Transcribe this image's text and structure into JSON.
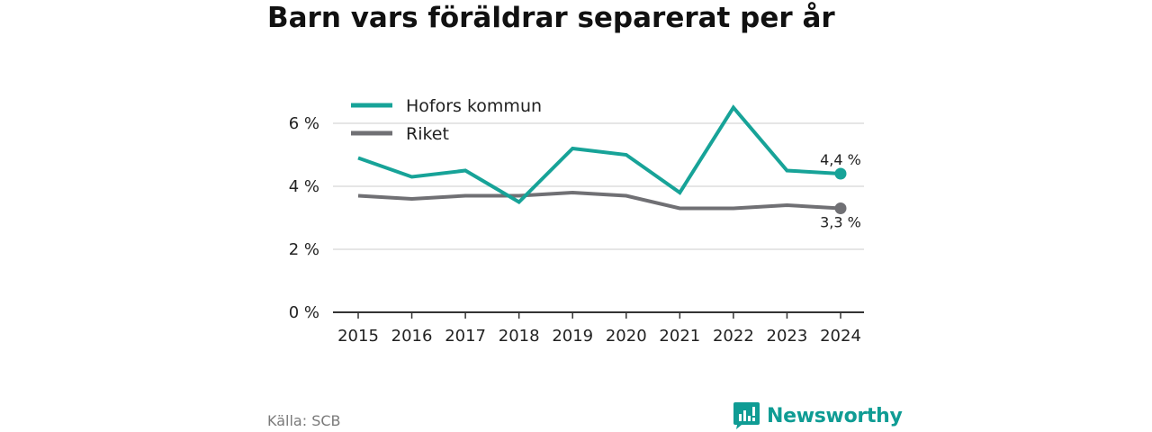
{
  "title": "Barn vars föräldrar separerat per år",
  "source": "Källa: SCB",
  "brand": {
    "name": "Newsworthy",
    "icon": "newsworthy-logo-icon",
    "color": "#0f9c94"
  },
  "chart_data": {
    "type": "line",
    "title": "Barn vars föräldrar separerat per år",
    "xlabel": "",
    "ylabel": "",
    "categories": [
      "2015",
      "2016",
      "2017",
      "2018",
      "2019",
      "2020",
      "2021",
      "2022",
      "2023",
      "2024"
    ],
    "y_ticks": [
      0,
      2,
      4,
      6
    ],
    "y_tick_labels": [
      "0 %",
      "2 %",
      "4 %",
      "6 %"
    ],
    "ylim": [
      0,
      6.8
    ],
    "grid": true,
    "legend_position": "top-left",
    "series": [
      {
        "name": "Hofors kommun",
        "color": "#17a398",
        "values": [
          4.9,
          4.3,
          4.5,
          3.5,
          5.2,
          5.0,
          3.8,
          6.5,
          4.5,
          4.4
        ],
        "end_label": "4,4 %"
      },
      {
        "name": "Riket",
        "color": "#707074",
        "values": [
          3.7,
          3.6,
          3.7,
          3.7,
          3.8,
          3.7,
          3.3,
          3.3,
          3.4,
          3.3
        ],
        "end_label": "3,3 %"
      }
    ]
  }
}
